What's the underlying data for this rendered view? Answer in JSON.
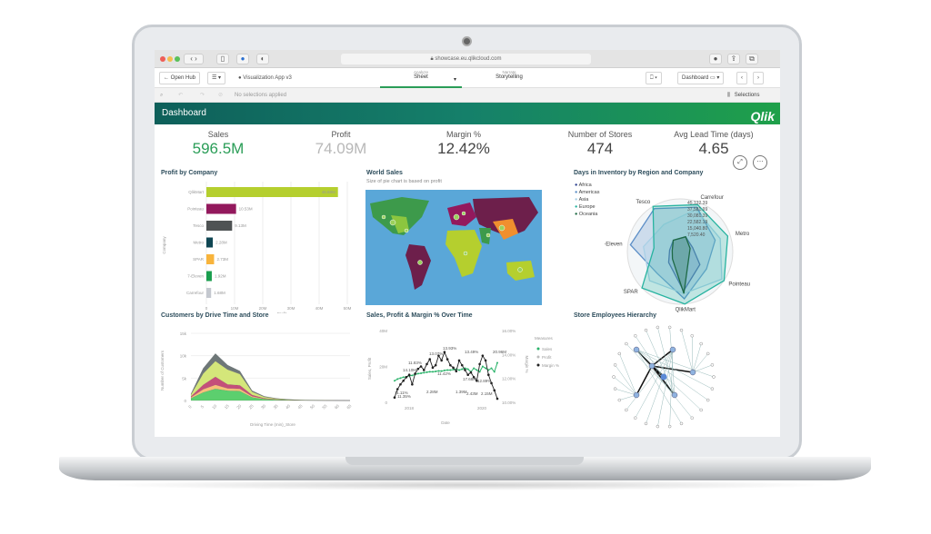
{
  "browser": {
    "url": "showcase.eu.qlikcloud.com",
    "traffic_lights": [
      "#ee5e57",
      "#f5bd4f",
      "#5ac05a"
    ]
  },
  "toolbar": {
    "open_hub": "Open Hub",
    "app_name": "Visualization App v3",
    "analyze_label": "Analyze",
    "sheet_label": "Sheet",
    "narrate_label": "Narrate",
    "storytelling_label": "Storytelling",
    "sheet_selector": "Dashboard"
  },
  "selections": {
    "status": "No selections applied",
    "selections_label": "Selections"
  },
  "dashboard": {
    "title": "Dashboard",
    "logo": "Qlik",
    "accent": "#009845"
  },
  "kpis": [
    {
      "label": "Sales",
      "value": "596.5M",
      "color": "#2a9d57"
    },
    {
      "label": "Profit",
      "value": "74.09M",
      "color": "#b8b8b8"
    },
    {
      "label": "Margin %",
      "value": "12.42%",
      "color": "#444444"
    },
    {
      "label": "Number of Stores",
      "value": "474",
      "color": "#444444"
    },
    {
      "label": "Avg Lead Time (days)",
      "value": "4.65",
      "color": "#444444"
    }
  ],
  "charts": {
    "profit": {
      "title": "Profit by Company"
    },
    "map": {
      "title": "World Sales",
      "subtitle": "Size of pie chart is based on profit"
    },
    "radar": {
      "title": "Days in Inventory by Region and Company"
    },
    "area": {
      "title": "Customers by Drive Time and Store"
    },
    "line": {
      "title": "Sales, Profit & Margin % Over Time"
    },
    "tree": {
      "title": "Store Employees Hierarchy"
    }
  },
  "chart_data": [
    {
      "type": "bar",
      "orientation": "horizontal",
      "title": "Profit by Company",
      "xlabel": "Profit",
      "ylabel": "Company",
      "categories": [
        "QlikMart",
        "Pointeau",
        "Tesco",
        "Metro",
        "SPAR",
        "7-Eleven",
        "Carrefour"
      ],
      "values": [
        46.68,
        10.53,
        9.13,
        2.28,
        2.73,
        1.92,
        1.68
      ],
      "labels": [
        "46.68M",
        "10.53M",
        "9.13M",
        "2.28M",
        "2.73M",
        "1.92M",
        "1.68M"
      ],
      "colors": [
        "#b5cf2e",
        "#93195d",
        "#4f5354",
        "#0f4653",
        "#f8b43c",
        "#1a9e4e",
        "#c4c8cf"
      ],
      "xticks": [
        "0",
        "10M",
        "20M",
        "30M",
        "40M",
        "50M"
      ],
      "xlim": [
        0,
        50
      ]
    },
    {
      "type": "radar",
      "title": "Days in Inventory by Region and Company",
      "axes": [
        "Carrefour",
        "Metro",
        "Pointeau",
        "QlikMart",
        "SPAR",
        "7-Eleven",
        "Tesco"
      ],
      "ticks": [
        "45,122.39",
        "37,581.99",
        "30,081.39",
        "22,582.19",
        "15,040.80",
        "7,520.40"
      ],
      "series": [
        {
          "name": "Africa",
          "color": "#2b3f8f",
          "values": [
            0.3,
            0.25,
            0.45,
            0.75,
            0.3,
            0.2,
            0.25
          ]
        },
        {
          "name": "Americas",
          "color": "#5d8fc7",
          "values": [
            0.9,
            0.7,
            0.6,
            0.9,
            0.6,
            0.95,
            0.95
          ]
        },
        {
          "name": "Asia",
          "color": "#a9d0e6",
          "values": [
            0.85,
            0.8,
            0.95,
            0.8,
            0.8,
            0.7,
            0.6
          ]
        },
        {
          "name": "Europe",
          "color": "#27b3a0",
          "values": [
            0.95,
            0.95,
            1.0,
            1.0,
            1.0,
            0.5,
            1.0
          ]
        },
        {
          "name": "Oceania",
          "color": "#1e6a45",
          "values": [
            0.3,
            0.2,
            0.2,
            0.8,
            0.2,
            0.15,
            0.25
          ]
        }
      ]
    },
    {
      "type": "area",
      "stacked": true,
      "title": "Customers by Drive Time and Store",
      "xlabel": "Driving Time (min)_Store",
      "ylabel": "Number of Customers",
      "yticks": [
        "0",
        "5k",
        "10k",
        "15k"
      ],
      "ylim": [
        0,
        15000
      ],
      "x": [
        0,
        5,
        10,
        15,
        20,
        25,
        30,
        35,
        40,
        45,
        50,
        55,
        60,
        65
      ],
      "series": [
        {
          "color": "#5ccf6e",
          "values": [
            500,
            1800,
            2600,
            2200,
            2100,
            700,
            300,
            150,
            80,
            40,
            20,
            10,
            5,
            0
          ]
        },
        {
          "color": "#f7c07a",
          "values": [
            200,
            700,
            900,
            500,
            500,
            250,
            100,
            50,
            30,
            10,
            5,
            0,
            0,
            0
          ]
        },
        {
          "color": "#c44f7a",
          "values": [
            200,
            1000,
            1800,
            900,
            800,
            300,
            100,
            50,
            20,
            10,
            5,
            0,
            0,
            0
          ]
        },
        {
          "color": "#d4e67a",
          "values": [
            400,
            2500,
            3500,
            3300,
            2500,
            700,
            300,
            150,
            80,
            40,
            20,
            10,
            5,
            0
          ]
        },
        {
          "color": "#6e7778",
          "values": [
            200,
            1200,
            1700,
            1000,
            700,
            250,
            150,
            80,
            40,
            20,
            10,
            5,
            0,
            0
          ]
        }
      ]
    },
    {
      "type": "line",
      "title": "Sales, Profit & Margin % Over Time",
      "xlabel": "Date",
      "ylabel": "Sales, Profit",
      "y2label": "Margin %",
      "yticks": [
        "0",
        "20M",
        "40M"
      ],
      "ylim": [
        0,
        40
      ],
      "y2ticks": [
        "10.00%",
        "12.00%",
        "14.00%",
        "16.00%"
      ],
      "y2lim": [
        10,
        16
      ],
      "xticks": [
        "2018",
        "2020"
      ],
      "legend_title": "Measures",
      "legend": [
        "Sales",
        "Profit",
        "Margin %"
      ],
      "sales": [
        12,
        13,
        13.5,
        14,
        14.2,
        14.8,
        15,
        15.5,
        16,
        16.2,
        16.5,
        16.8,
        17,
        17,
        17.2,
        17.5,
        17.4,
        17.8,
        18,
        18,
        18.2,
        18.5,
        18,
        18.5,
        19,
        18.5,
        17,
        19,
        18,
        17,
        20,
        19,
        18,
        19,
        17,
        22
      ],
      "margin_pct": [
        10.4,
        11.1,
        11.5,
        11.8,
        12.1,
        12.3,
        11.5,
        12.4,
        12.8,
        13,
        12.7,
        13.2,
        13.6,
        12.9,
        13.1,
        13.9,
        13.5,
        14.2,
        13.6,
        13.1,
        12.9,
        12.6,
        13.5,
        13.1,
        12.7,
        12.3,
        12.5,
        12.1,
        11.8,
        13.2,
        13.9,
        13.5,
        12.3,
        11.6,
        11.0,
        10.3
      ],
      "annotations": [
        "11.11%",
        "14.10M",
        "11.83%",
        "13.07%",
        "13.93%",
        "13.49%",
        "20.96M",
        "11.35%",
        "11.42%",
        "17.68M",
        "12.89%",
        "1.39M",
        "2.28M",
        "2.43M",
        "2.15M"
      ]
    },
    {
      "type": "tree",
      "title": "Store Employees Hierarchy"
    }
  ]
}
